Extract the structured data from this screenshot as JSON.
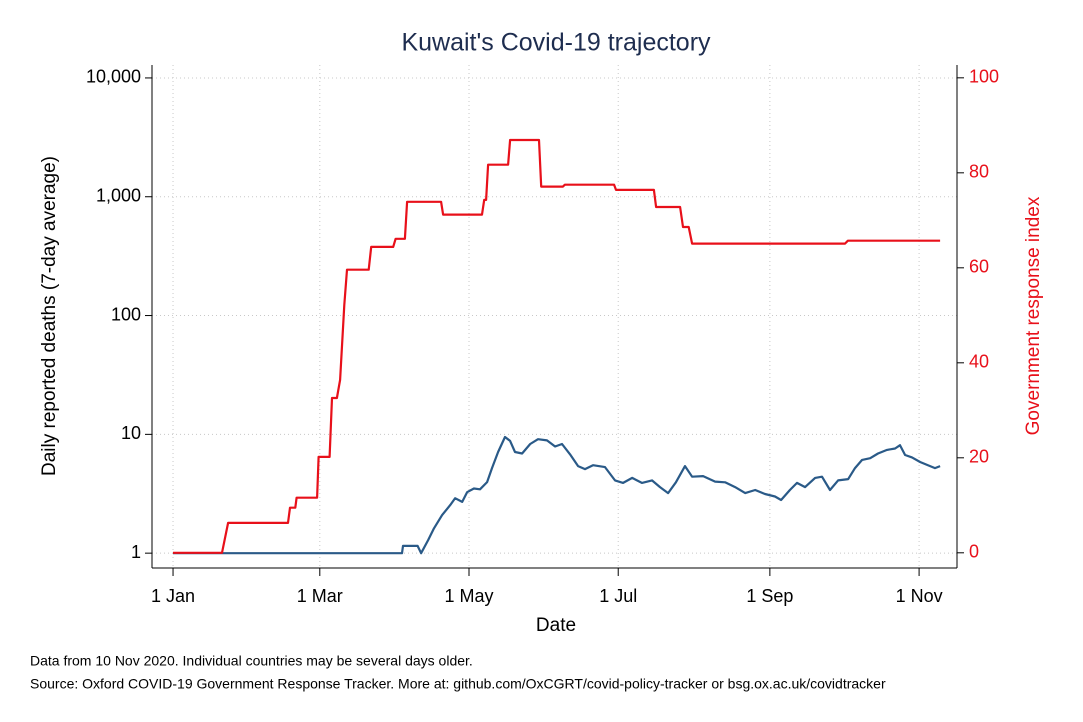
{
  "chart_data": {
    "type": "line",
    "title": "Kuwait's Covid-19 trajectory",
    "x_label": "Date",
    "y_label": "Daily reported deaths (7-day average)",
    "y2_label": "Government response index",
    "notes": [
      "Data from 10 Nov 2020. Individual countries may be several days older.",
      "Source: Oxford COVID-19 Government Response Tracker. More at: github.com/OxCGRT/covid-policy-tracker or bsg.ox.ac.uk/covidtracker"
    ],
    "xlim": [
      -8.6,
      320.5
    ],
    "xticks": [
      {
        "value": 0,
        "label": "1 Jan"
      },
      {
        "value": 60,
        "label": "1 Mar"
      },
      {
        "value": 121,
        "label": "1 May"
      },
      {
        "value": 182,
        "label": "1 Jul"
      },
      {
        "value": 244,
        "label": "1 Sep"
      },
      {
        "value": 305,
        "label": "1 Nov"
      }
    ],
    "ylim": [
      0.75,
      12850
    ],
    "log_y": true,
    "yticks": [
      1,
      10,
      100,
      {
        "value": 1000,
        "label": "1,000"
      },
      {
        "value": 10000,
        "label": "10,000"
      }
    ],
    "y2lim": [
      -3.2,
      102.7
    ],
    "y2ticks": [
      0,
      20,
      40,
      60,
      80,
      100
    ],
    "y2_color": "#e8101a",
    "grid": true,
    "series": [
      {
        "color": "#2a5a88",
        "axis": "y",
        "x": [
          0,
          93.6,
          94,
          100,
          101.4,
          104.3,
          106.7,
          110,
          113.3,
          115.3,
          118.2,
          120.2,
          123,
          125.5,
          128.4,
          130.4,
          132.9,
          135.7,
          137.8,
          139.8,
          142.7,
          146,
          149.2,
          152.9,
          156.2,
          159,
          162.3,
          165.6,
          168.4,
          171.7,
          176.6,
          180.7,
          184,
          187.7,
          191.7,
          195.8,
          199.1,
          202.4,
          205.6,
          209.3,
          212.2,
          216.7,
          221.6,
          225.7,
          229.8,
          233.9,
          238,
          242,
          246.1,
          248.6,
          252.2,
          255.1,
          258.4,
          262.5,
          265.3,
          268.6,
          271.9,
          276,
          278.8,
          281.7,
          285,
          288.2,
          291.9,
          295.2,
          297.2,
          299.3,
          302.1,
          305.4,
          309.5,
          311.5,
          313.6
        ],
        "values": [
          1,
          1,
          1.15,
          1.15,
          1,
          1.29,
          1.62,
          2.09,
          2.54,
          2.9,
          2.7,
          3.26,
          3.5,
          3.45,
          3.96,
          5.2,
          7.1,
          9.5,
          8.8,
          7.1,
          6.9,
          8.3,
          9.1,
          8.9,
          7.9,
          8.3,
          6.8,
          5.4,
          5.1,
          5.5,
          5.3,
          4.1,
          3.9,
          4.3,
          3.9,
          4.1,
          3.6,
          3.2,
          3.95,
          5.4,
          4.4,
          4.45,
          4.0,
          3.95,
          3.6,
          3.2,
          3.4,
          3.15,
          3.0,
          2.8,
          3.4,
          3.9,
          3.6,
          4.3,
          4.4,
          3.4,
          4.1,
          4.2,
          5.2,
          6.1,
          6.3,
          6.9,
          7.4,
          7.6,
          8.1,
          6.7,
          6.4,
          5.85,
          5.4,
          5.2,
          5.4
        ]
      },
      {
        "color": "#e8101a",
        "axis": "y2",
        "x": [
          0,
          20,
          22.5,
          47,
          47.8,
          50,
          50.5,
          58.9,
          59.5,
          64,
          65,
          67,
          68.3,
          70,
          71.1,
          80,
          81,
          90,
          91,
          94.8,
          95.7,
          109.6,
          110.4,
          126.3,
          127.2,
          128,
          128.8,
          137,
          137.8,
          149.6,
          150.5,
          159.4,
          160.2,
          180.3,
          181.1,
          196.6,
          197.5,
          207.3,
          208.5,
          210.8,
          212.2,
          274.7,
          275.9,
          313.6
        ],
        "values": [
          0,
          0,
          6.3,
          6.3,
          9.5,
          9.5,
          11.6,
          11.6,
          20.2,
          20.2,
          32.6,
          32.6,
          36.4,
          52.2,
          59.6,
          59.6,
          64.4,
          64.4,
          66.1,
          66.1,
          73.9,
          73.9,
          71.2,
          71.2,
          74.3,
          74.3,
          81.7,
          81.7,
          86.9,
          86.9,
          77.1,
          77.1,
          77.5,
          77.5,
          76.4,
          76.4,
          72.8,
          72.8,
          68.6,
          68.6,
          65.1,
          65.1,
          65.7,
          65.7
        ]
      }
    ]
  }
}
